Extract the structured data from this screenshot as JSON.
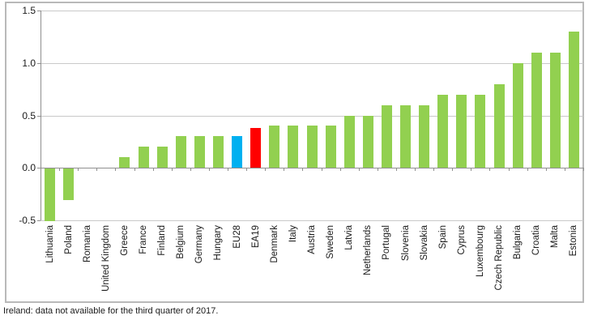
{
  "chart_data": {
    "type": "bar",
    "title": "",
    "xlabel": "",
    "ylabel": "",
    "categories": [
      "Lithuania",
      "Poland",
      "Romania",
      "United Kingdom",
      "Greece",
      "France",
      "Finland",
      "Belgium",
      "Germany",
      "Hungary",
      "EU28",
      "EA19",
      "Denmark",
      "Italy",
      "Austria",
      "Sweden",
      "Latvia",
      "Netherlands",
      "Portugal",
      "Slovenia",
      "Slovakia",
      "Spain",
      "Cyprus",
      "Luxembourg",
      "Czech Republic",
      "Bulgaria",
      "Croatia",
      "Malta",
      "Estonia"
    ],
    "values": [
      -0.5,
      -0.3,
      0.0,
      0.0,
      0.1,
      0.2,
      0.2,
      0.3,
      0.3,
      0.3,
      0.3,
      0.38,
      0.4,
      0.4,
      0.4,
      0.4,
      0.5,
      0.5,
      0.6,
      0.6,
      0.6,
      0.7,
      0.7,
      0.7,
      0.8,
      1.0,
      1.1,
      1.1,
      1.3
    ],
    "default_bar_color": "#92D050",
    "highlight_bars": {
      "EU28": "#00B0F0",
      "EA19": "#FF0000"
    },
    "ylim": [
      -0.5,
      1.5
    ],
    "ytick_labels": [
      "1.5",
      "1.0",
      "0.5",
      "0.0",
      "-0.5"
    ],
    "grid": true,
    "legend_position": "none"
  },
  "footnote": "Ireland: data not available for the third quarter of 2017."
}
